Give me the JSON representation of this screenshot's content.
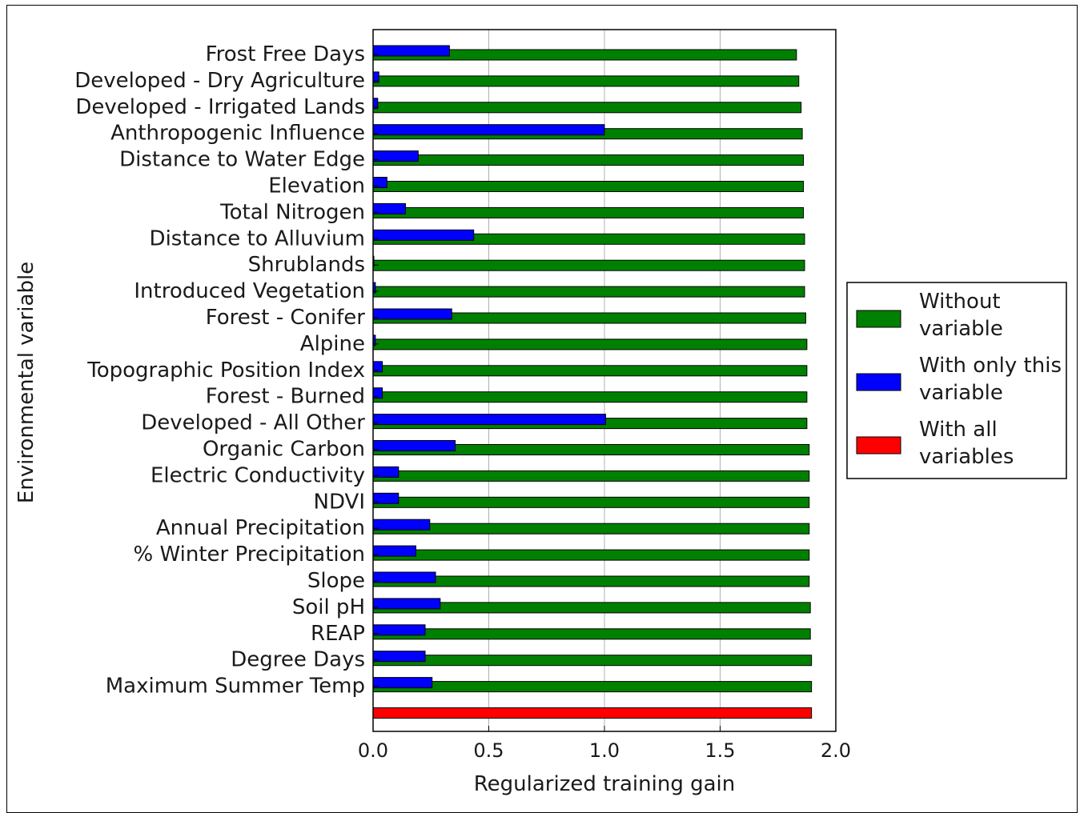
{
  "chart_data": {
    "type": "bar",
    "orientation": "horizontal",
    "title": "",
    "xlabel": "Regularized training gain",
    "ylabel": "Environmental variable",
    "xlim": [
      0.0,
      2.0
    ],
    "xticks": [
      "0.0",
      "0.5",
      "1.0",
      "1.5",
      "2.0"
    ],
    "grid": "vertical",
    "legend_position": "right",
    "categories": [
      "Frost Free Days",
      "Developed - Dry Agriculture",
      "Developed - Irrigated Lands",
      "Anthropogenic Influence",
      "Distance to Water Edge",
      "Elevation",
      "Total Nitrogen",
      "Distance to Alluvium",
      "Shrublands",
      "Introduced Vegetation",
      "Forest - Conifer",
      "Alpine",
      "Topographic Position Index",
      "Forest - Burned",
      "Developed - All Other",
      "Organic Carbon",
      "Electric Conductivity",
      "NDVI",
      "Annual Precipitation",
      "% Winter Precipitation",
      "Slope",
      "Soil pH",
      "REAP",
      "Degree Days",
      "Maximum Summer Temp"
    ],
    "series": [
      {
        "name": "Without variable",
        "color": "#008000",
        "values": [
          1.83,
          1.84,
          1.85,
          1.855,
          1.86,
          1.86,
          1.86,
          1.865,
          1.865,
          1.865,
          1.87,
          1.875,
          1.875,
          1.875,
          1.875,
          1.885,
          1.885,
          1.885,
          1.885,
          1.885,
          1.885,
          1.89,
          1.89,
          1.895,
          1.895
        ]
      },
      {
        "name": "With only this variable",
        "color": "#0000ff",
        "values": [
          0.33,
          0.025,
          0.02,
          1.0,
          0.195,
          0.06,
          0.14,
          0.435,
          0.003,
          0.01,
          0.34,
          0.01,
          0.04,
          0.04,
          1.005,
          0.355,
          0.11,
          0.11,
          0.245,
          0.185,
          0.27,
          0.29,
          0.225,
          0.225,
          0.255
        ]
      }
    ],
    "all_variables": {
      "name": "With all variables",
      "color": "#ff0000",
      "value": 1.895
    }
  }
}
